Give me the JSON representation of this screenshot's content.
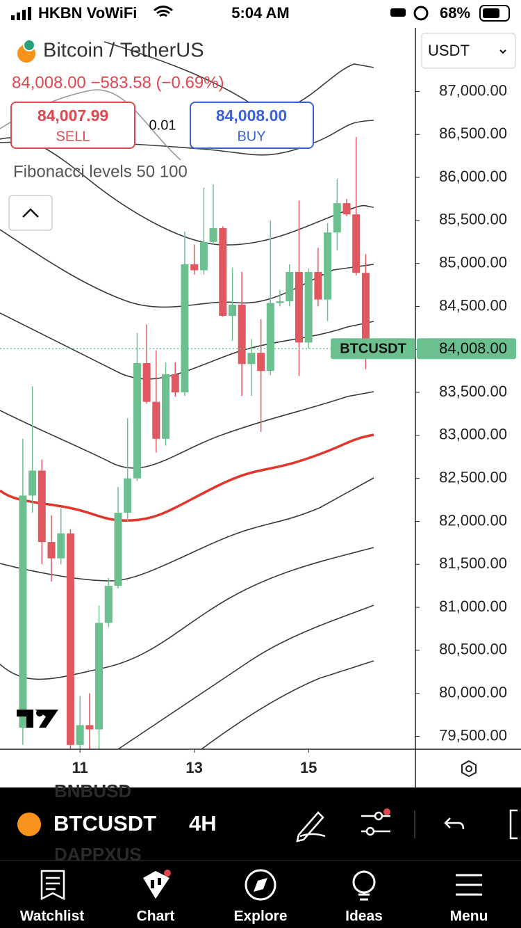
{
  "status_bar": {
    "carrier": "HKBN VoWiFi",
    "time": "5:04 AM",
    "battery": "68%"
  },
  "header": {
    "symbol_title": "Bitcoin / TetherUS",
    "quote_line": "84,008.00 −583.58 (−0.69%)",
    "sell": {
      "price": "84,007.99",
      "label": "SELL"
    },
    "spread": "0.01",
    "buy": {
      "price": "84,008.00",
      "label": "BUY"
    },
    "indicator_label": "Fibonacci levels 50 100",
    "currency": "USDT"
  },
  "chart_data": {
    "type": "candlestick",
    "x": [
      10,
      10.167,
      10.333,
      10.5,
      10.667,
      10.833,
      11,
      11.167,
      11.333,
      11.5,
      11.667,
      11.833,
      12,
      12.167,
      12.333,
      12.5,
      12.667,
      12.833,
      13,
      13.167,
      13.333,
      13.5,
      13.667,
      13.833,
      14,
      14.167,
      14.333,
      14.5,
      14.667,
      14.833,
      15,
      15.167,
      15.333,
      15.5,
      15.667,
      15.833,
      16
    ],
    "open": [
      79600,
      82300,
      82590,
      81760,
      81570,
      81860,
      79400,
      79630,
      79580,
      80820,
      81250,
      82100,
      82500,
      83840,
      83390,
      82960,
      83710,
      83500,
      84990,
      84920,
      85250,
      85410,
      84390,
      84520,
      83830,
      83960,
      83750,
      84540,
      84560,
      84900,
      84080,
      84900,
      84580,
      85360,
      85700,
      85570,
      84890
    ],
    "high": [
      82960,
      83570,
      82720,
      82070,
      82150,
      81910,
      79970,
      80000,
      81020,
      81340,
      82400,
      83200,
      84190,
      84290,
      83990,
      83850,
      83850,
      85370,
      85220,
      85880,
      85920,
      85430,
      84950,
      84900,
      84120,
      84350,
      85500,
      84690,
      84990,
      85730,
      84940,
      85180,
      85470,
      85980,
      85750,
      86470,
      85110
    ],
    "low": [
      79400,
      82100,
      81500,
      81300,
      81500,
      79350,
      79350,
      79350,
      79350,
      80770,
      81220,
      82000,
      82470,
      83370,
      82800,
      82880,
      83450,
      83460,
      84870,
      84870,
      85220,
      84380,
      84100,
      83460,
      83460,
      83040,
      83700,
      84500,
      84500,
      83690,
      84010,
      84500,
      84330,
      85150,
      85550,
      84860,
      83770
    ],
    "close": [
      82300,
      82590,
      81760,
      81570,
      81860,
      79400,
      79630,
      79580,
      80820,
      81250,
      82100,
      82500,
      83840,
      83390,
      82960,
      83710,
      83500,
      84990,
      84920,
      85250,
      85410,
      84390,
      84520,
      83830,
      83960,
      83750,
      84540,
      84560,
      84900,
      84080,
      84900,
      84580,
      85360,
      85700,
      85570,
      84890,
      84010
    ],
    "up_color": "#6cbf8f",
    "down_color": "#e0575f",
    "xlim": [
      9.6,
      16.87
    ],
    "xticks": [
      11,
      13,
      15
    ],
    "ylim": [
      79350,
      87740
    ],
    "yticks": [
      {
        "value": 79500,
        "label": "79,500.00"
      },
      {
        "value": 80000,
        "label": "80,000.00"
      },
      {
        "value": 80500,
        "label": "80,500.00"
      },
      {
        "value": 81000,
        "label": "81,000.00"
      },
      {
        "value": 81500,
        "label": "81,500.00"
      },
      {
        "value": 82000,
        "label": "82,000.00"
      },
      {
        "value": 82500,
        "label": "82,500.00"
      },
      {
        "value": 83000,
        "label": "83,000.00"
      },
      {
        "value": 83500,
        "label": "83,500.00"
      },
      {
        "value": 84000,
        "label": "84,000.00"
      },
      {
        "value": 84500,
        "label": "84,500.00"
      },
      {
        "value": 85000,
        "label": "85,000.00"
      },
      {
        "value": 85500,
        "label": "85,500.00"
      },
      {
        "value": 86000,
        "label": "86,000.00"
      },
      {
        "value": 86500,
        "label": "86,500.00"
      },
      {
        "value": 87000,
        "label": "87,000.00"
      }
    ],
    "last_price": {
      "value": 84008,
      "label": "84,008.00"
    },
    "last_symbol": "BTCUSDT"
  },
  "toolbar": {
    "symbol": "BTCUSDT",
    "interval": "4H",
    "ghost_symbols": [
      "BNBUSD",
      "DAPPXUS"
    ]
  },
  "tabs": [
    "Watchlist",
    "Chart",
    "Explore",
    "Ideas",
    "Menu"
  ]
}
